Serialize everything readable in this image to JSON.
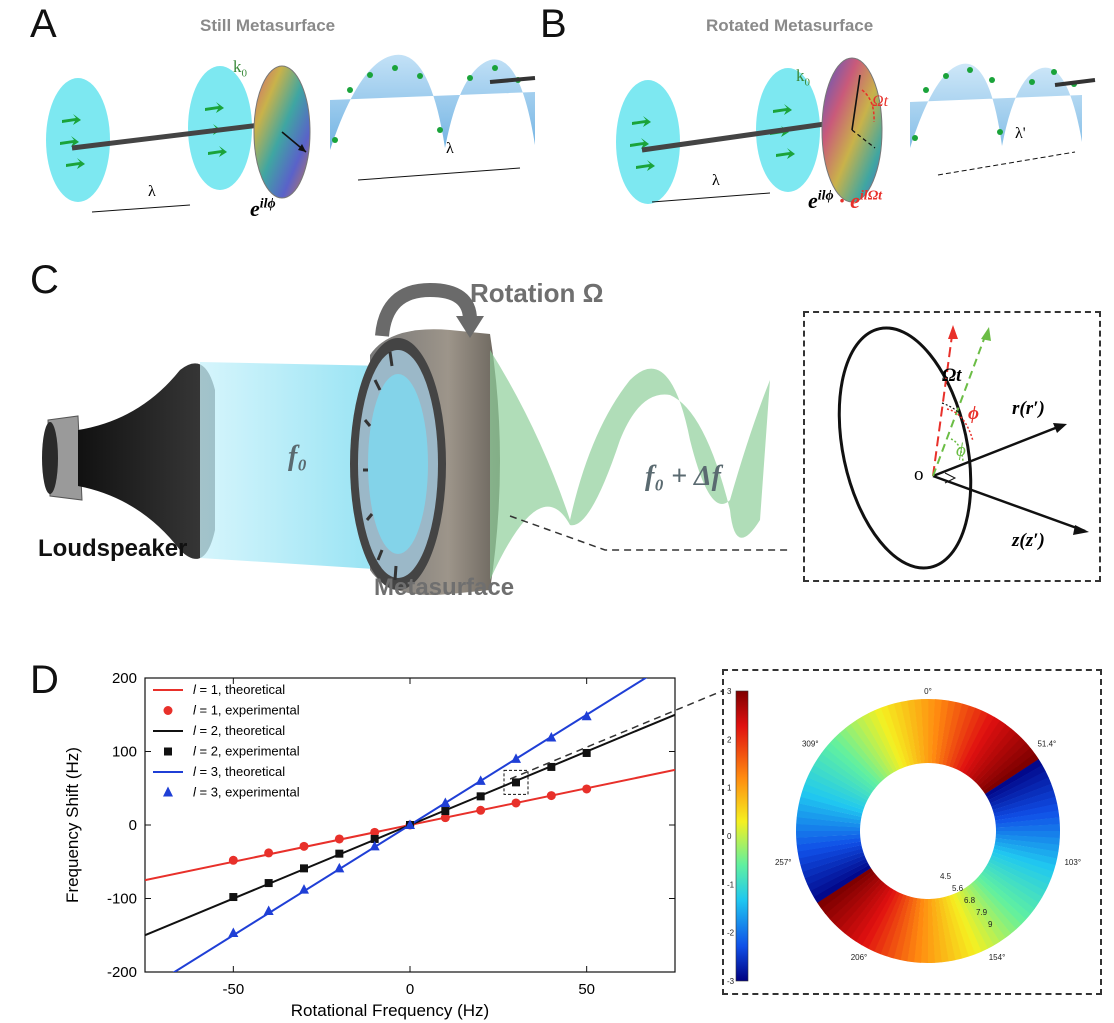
{
  "panels": {
    "A": {
      "letter": "A",
      "title": "Still Metasurface",
      "k_label": "k",
      "k_sub": "0",
      "lambda_left": "λ",
      "lambda_right": "λ",
      "phase_expr": "e",
      "phase_exp": "ilϕ"
    },
    "B": {
      "letter": "B",
      "title": "Rotated Metasurface",
      "k_label": "k",
      "k_sub": "0",
      "omega_t": "Ωt",
      "lambda_left": "λ",
      "lambda_right": "λ'",
      "phase_expr_1": "e",
      "phase_exp_1": "ilϕ",
      "dot": "·",
      "phase_expr_2": "e",
      "phase_exp_2": "ilΩt"
    },
    "C": {
      "letter": "C",
      "rotation_label": "Rotation Ω",
      "f0_label": "f₀",
      "f_shift_label": "f₀ + Δf",
      "loudspeaker_label": "Loudspeaker",
      "metasurface_label": "Metasurface",
      "inset": {
        "omega_t": "Ωt",
        "phi_red": "ϕ",
        "phi_green": "ϕ",
        "origin": "o",
        "r_axis": "r(r′)",
        "z_axis": "z(z′)"
      }
    },
    "D": {
      "letter": "D"
    }
  },
  "colors": {
    "red": "#e8302a",
    "black": "#111111",
    "blue": "#1f3fd6",
    "cyan": "#5fe6f0",
    "green_wave": "#8fcf9a",
    "green_arrow": "#1aa33a"
  },
  "chart_data": {
    "type": "line",
    "xlabel": "Rotational Frequency (Hz)",
    "ylabel": "Frequency Shift (Hz)",
    "xlim": [
      -75,
      75
    ],
    "ylim": [
      -200,
      200
    ],
    "xticks": [
      -50,
      0,
      50
    ],
    "yticks": [
      -200,
      -100,
      0,
      100,
      200
    ],
    "legend_position": "top-left",
    "series": [
      {
        "name": "l = 1, theoretical",
        "kind": "line",
        "color": "#e8302a",
        "x": [
          -75,
          75
        ],
        "y": [
          -75,
          75
        ]
      },
      {
        "name": "l = 1, experimental",
        "kind": "circle",
        "color": "#e8302a",
        "x": [
          -50,
          -40,
          -30,
          -20,
          -10,
          0,
          10,
          20,
          30,
          40,
          50
        ],
        "y": [
          -48,
          -38,
          -29,
          -19,
          -10,
          0,
          10,
          20,
          30,
          40,
          49
        ]
      },
      {
        "name": "l = 2, theoretical",
        "kind": "line",
        "color": "#111111",
        "x": [
          -75,
          75
        ],
        "y": [
          -150,
          150
        ]
      },
      {
        "name": "l = 2, experimental",
        "kind": "square",
        "color": "#111111",
        "x": [
          -50,
          -40,
          -30,
          -20,
          -10,
          0,
          10,
          20,
          30,
          40,
          50
        ],
        "y": [
          -98,
          -79,
          -59,
          -39,
          -19,
          0,
          19,
          39,
          58,
          79,
          98
        ]
      },
      {
        "name": "l = 3, theoretical",
        "kind": "line",
        "color": "#1f3fd6",
        "x": [
          -75,
          75
        ],
        "y": [
          -225,
          225
        ]
      },
      {
        "name": "l = 3, experimental",
        "kind": "triangle",
        "color": "#1f3fd6",
        "x": [
          -50,
          -40,
          -30,
          -20,
          -10,
          0,
          10,
          20,
          30,
          40,
          50
        ],
        "y": [
          -147,
          -117,
          -88,
          -59,
          -29,
          0,
          30,
          60,
          90,
          119,
          148
        ]
      }
    ],
    "legend_prefix": "l",
    "legend_suffixes": [
      " = 1, theoretical",
      " = 1, experimental",
      " = 2, theoretical",
      " = 2, experimental",
      " = 3, theoretical",
      " = 3, experimental"
    ]
  },
  "inset_plot": {
    "colorbar_ticks": [
      "3",
      "2",
      "1",
      "0",
      "-1",
      "-2",
      "-3"
    ],
    "angle_labels": [
      "0°",
      "51.4°",
      "103°",
      "154°",
      "206°",
      "257°",
      "309°"
    ],
    "radial_labels": [
      "4.5",
      "5.6",
      "6.8",
      "7.9",
      "9"
    ]
  }
}
